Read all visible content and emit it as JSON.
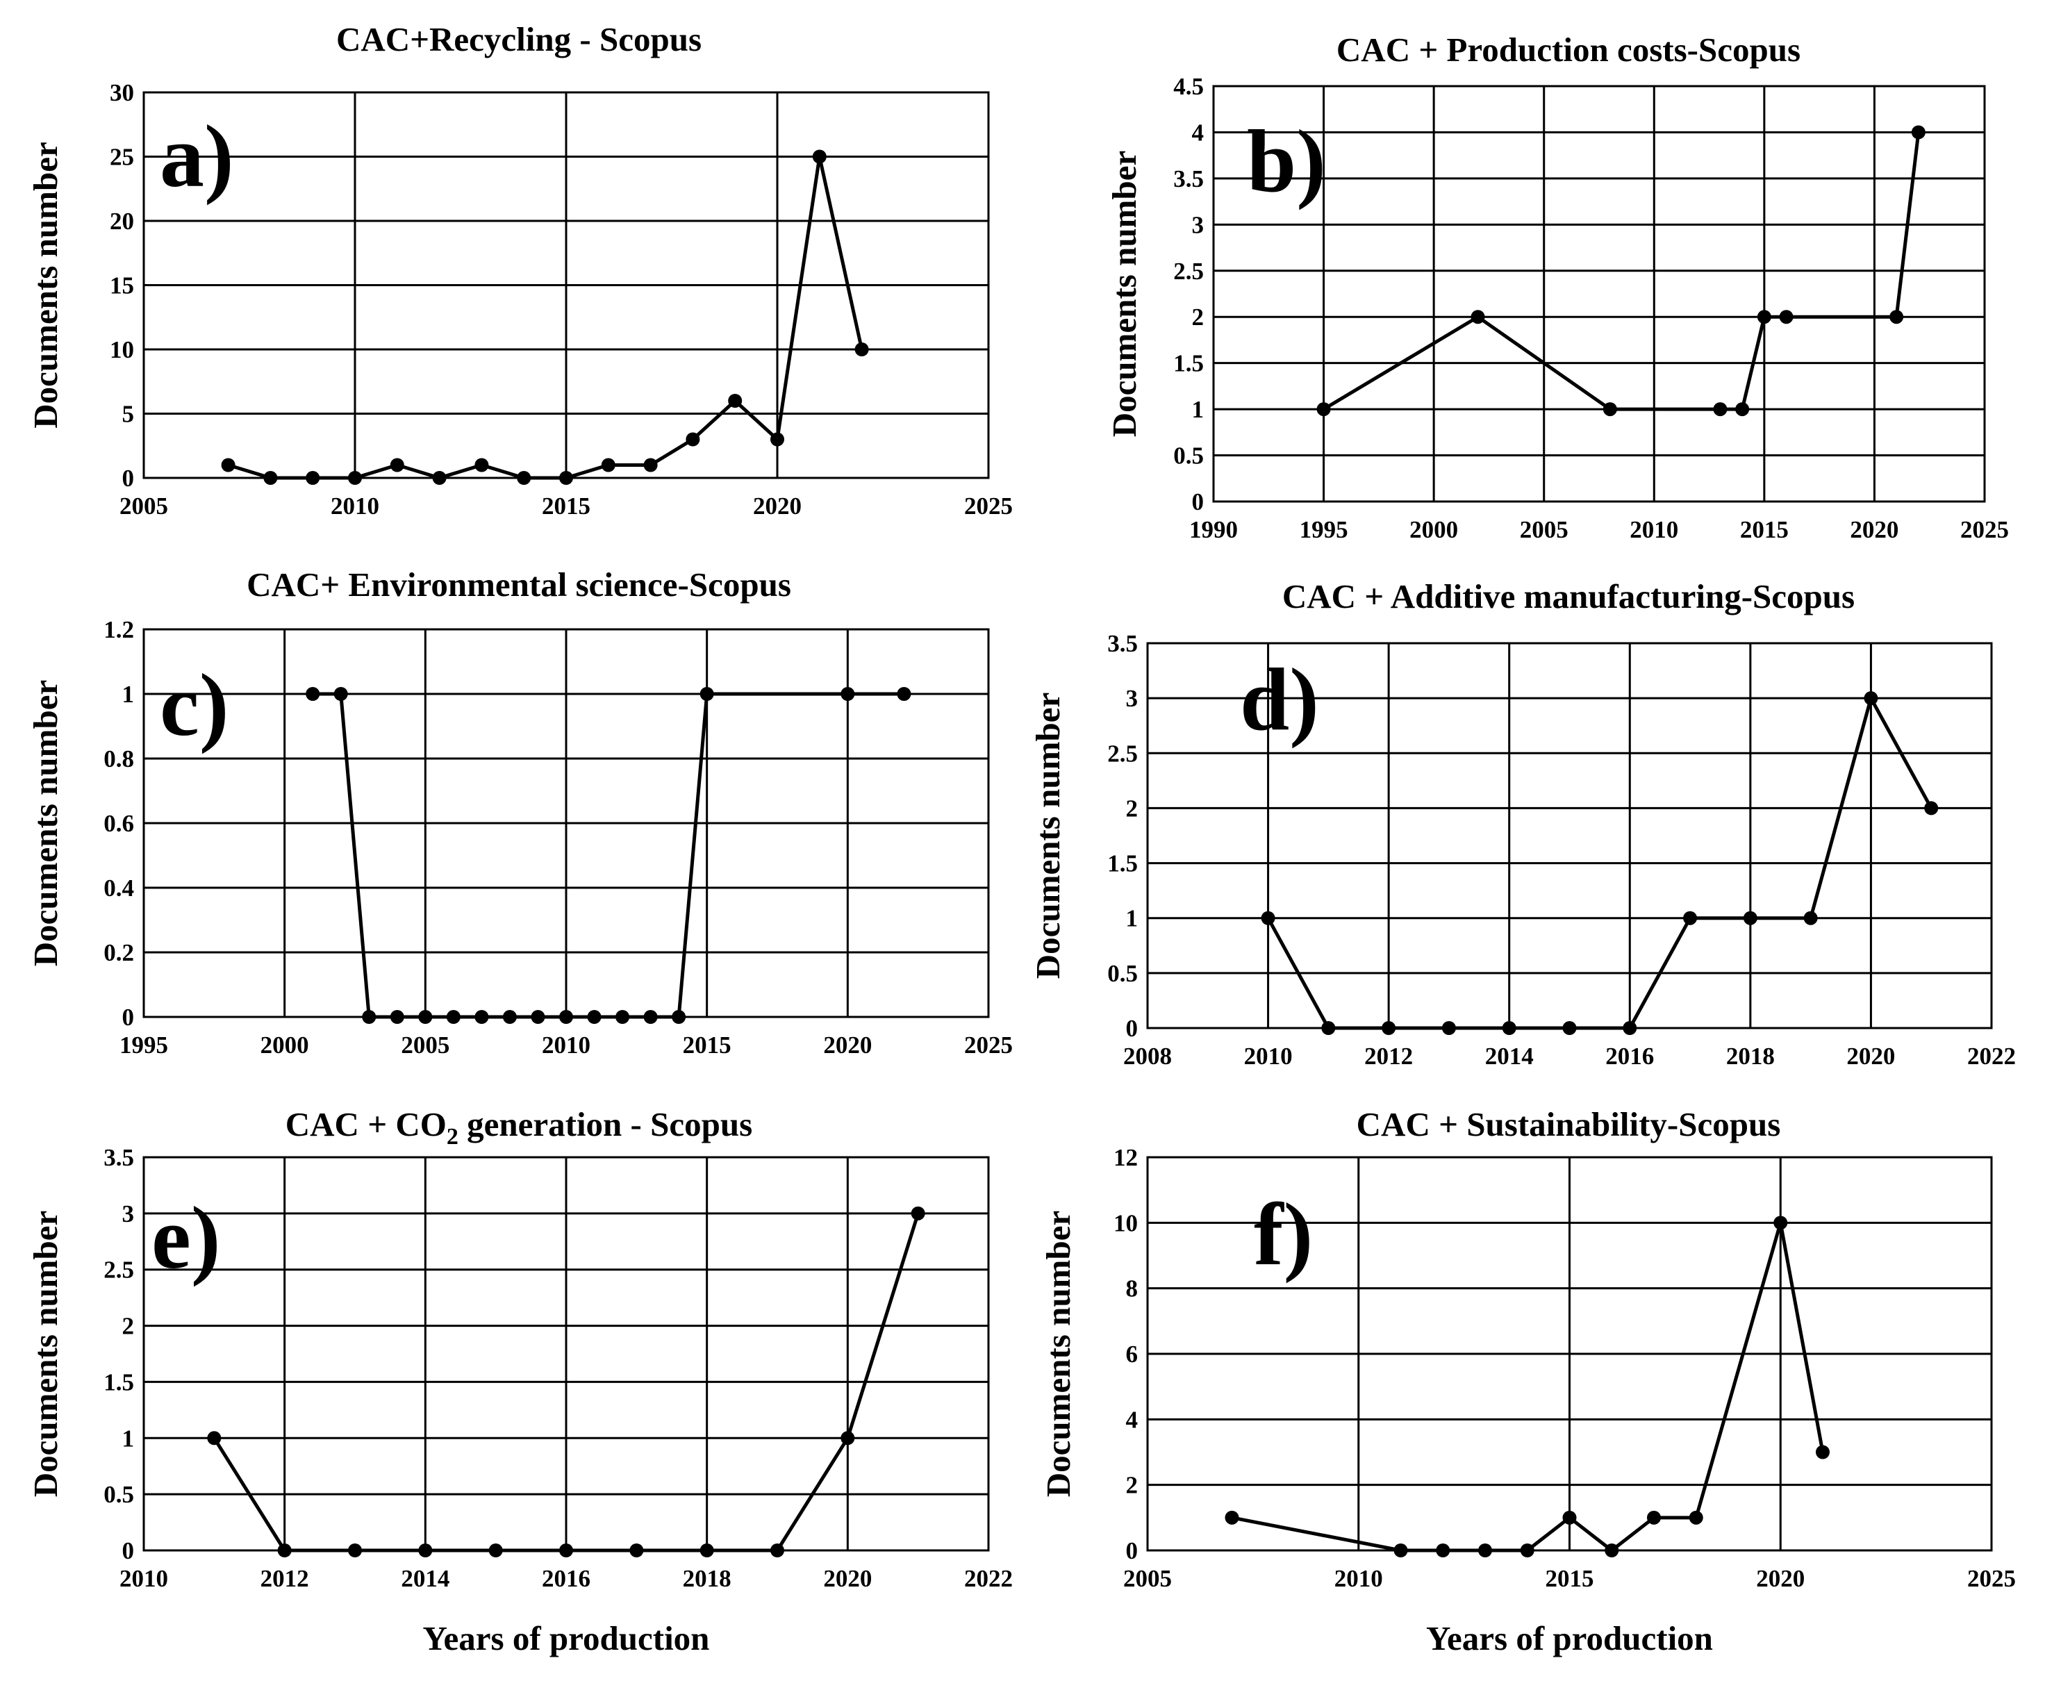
{
  "chart_data": [
    {
      "type": "line",
      "panel_label": "a)",
      "title": "CAC+Recycling - Scopus",
      "ylabel": "Documents number",
      "xlabel": "",
      "xlim": [
        2005,
        2025
      ],
      "xstep": 5,
      "ylim": [
        0,
        30
      ],
      "ystep": 5,
      "xticks": [
        "2005",
        "2010",
        "2015",
        "2020",
        "2025"
      ],
      "yticks": [
        "0",
        "5",
        "10",
        "15",
        "20",
        "25",
        "30"
      ],
      "x": [
        2007,
        2008,
        2009,
        2010,
        2011,
        2012,
        2013,
        2014,
        2015,
        2016,
        2017,
        2018,
        2019,
        2020,
        2021,
        2022
      ],
      "y": [
        1,
        0,
        0,
        0,
        1,
        0,
        1,
        0,
        0,
        1,
        1,
        3,
        6,
        3,
        25,
        10
      ]
    },
    {
      "type": "line",
      "panel_label": "b)",
      "title": "CAC + Production costs-Scopus",
      "ylabel": "Documents number",
      "xlabel": "",
      "xlim": [
        1990,
        2025
      ],
      "xstep": 5,
      "ylim": [
        0,
        4.5
      ],
      "ystep": 0.5,
      "xticks": [
        "1990",
        "1995",
        "2000",
        "2005",
        "2010",
        "2015",
        "2020",
        "2025"
      ],
      "yticks": [
        "0",
        "0.5",
        "1",
        "1.5",
        "2",
        "2.5",
        "3",
        "3.5",
        "4",
        "4.5"
      ],
      "x": [
        1995,
        2002,
        2008,
        2013,
        2014,
        2015,
        2016,
        2021,
        2022
      ],
      "y": [
        1,
        2,
        1,
        1,
        1,
        2,
        2,
        2,
        4
      ]
    },
    {
      "type": "line",
      "panel_label": "c)",
      "title": "CAC+ Environmental science-Scopus",
      "ylabel": "Documents number",
      "xlabel": "",
      "xlim": [
        1995,
        2025
      ],
      "xstep": 5,
      "ylim": [
        0,
        1.2
      ],
      "ystep": 0.2,
      "xticks": [
        "1995",
        "2000",
        "2005",
        "2010",
        "2015",
        "2020",
        "2025"
      ],
      "yticks": [
        "0",
        "0.2",
        "0.4",
        "0.6",
        "0.8",
        "1",
        "1.2"
      ],
      "x": [
        2001,
        2002,
        2003,
        2004,
        2005,
        2006,
        2007,
        2008,
        2009,
        2010,
        2011,
        2012,
        2013,
        2014,
        2015,
        2020,
        2022
      ],
      "y": [
        1,
        1,
        0,
        0,
        0,
        0,
        0,
        0,
        0,
        0,
        0,
        0,
        0,
        0,
        1,
        1,
        1
      ]
    },
    {
      "type": "line",
      "panel_label": "d)",
      "title": "CAC + Additive manufacturing-Scopus",
      "ylabel": "Documents number",
      "xlabel": "",
      "xlim": [
        2008,
        2022
      ],
      "xstep": 2,
      "ylim": [
        0,
        3.5
      ],
      "ystep": 0.5,
      "xticks": [
        "2008",
        "2010",
        "2012",
        "2014",
        "2016",
        "2018",
        "2020",
        "2022"
      ],
      "yticks": [
        "0",
        "0.5",
        "1",
        "1.5",
        "2",
        "2.5",
        "3",
        "3.5"
      ],
      "x": [
        2010,
        2011,
        2012,
        2013,
        2014,
        2015,
        2016,
        2017,
        2018,
        2019,
        2020,
        2021
      ],
      "y": [
        1,
        0,
        0,
        0,
        0,
        0,
        0,
        1,
        1,
        1,
        3,
        2
      ]
    },
    {
      "type": "line",
      "panel_label": "e)",
      "title": "CAC + CO",
      "title_sub": "2",
      "title_rest": " generation - Scopus",
      "ylabel": "Documents number",
      "xlabel": "Years of production",
      "xlim": [
        2010,
        2022
      ],
      "xstep": 2,
      "ylim": [
        0,
        3.5
      ],
      "ystep": 0.5,
      "xticks": [
        "2010",
        "2012",
        "2014",
        "2016",
        "2018",
        "2020",
        "2022"
      ],
      "yticks": [
        "0",
        "0.5",
        "1",
        "1.5",
        "2",
        "2.5",
        "3",
        "3.5"
      ],
      "x": [
        2011,
        2012,
        2013,
        2014,
        2015,
        2016,
        2017,
        2018,
        2019,
        2020,
        2021
      ],
      "y": [
        1,
        0,
        0,
        0,
        0,
        0,
        0,
        0,
        0,
        1,
        3
      ]
    },
    {
      "type": "line",
      "panel_label": "f)",
      "title": "CAC + Sustainability-Scopus",
      "ylabel": "Documents number",
      "xlabel": "Years of production",
      "xlim": [
        2005,
        2025
      ],
      "xstep": 5,
      "ylim": [
        0,
        12
      ],
      "ystep": 2,
      "xticks": [
        "2005",
        "2010",
        "2015",
        "2020",
        "2025"
      ],
      "yticks": [
        "0",
        "2",
        "4",
        "6",
        "8",
        "10",
        "12"
      ],
      "x": [
        2007,
        2011,
        2012,
        2013,
        2014,
        2015,
        2016,
        2017,
        2018,
        2020,
        2021
      ],
      "y": [
        1,
        0,
        0,
        0,
        0,
        1,
        0,
        1,
        1,
        10,
        3
      ]
    }
  ]
}
